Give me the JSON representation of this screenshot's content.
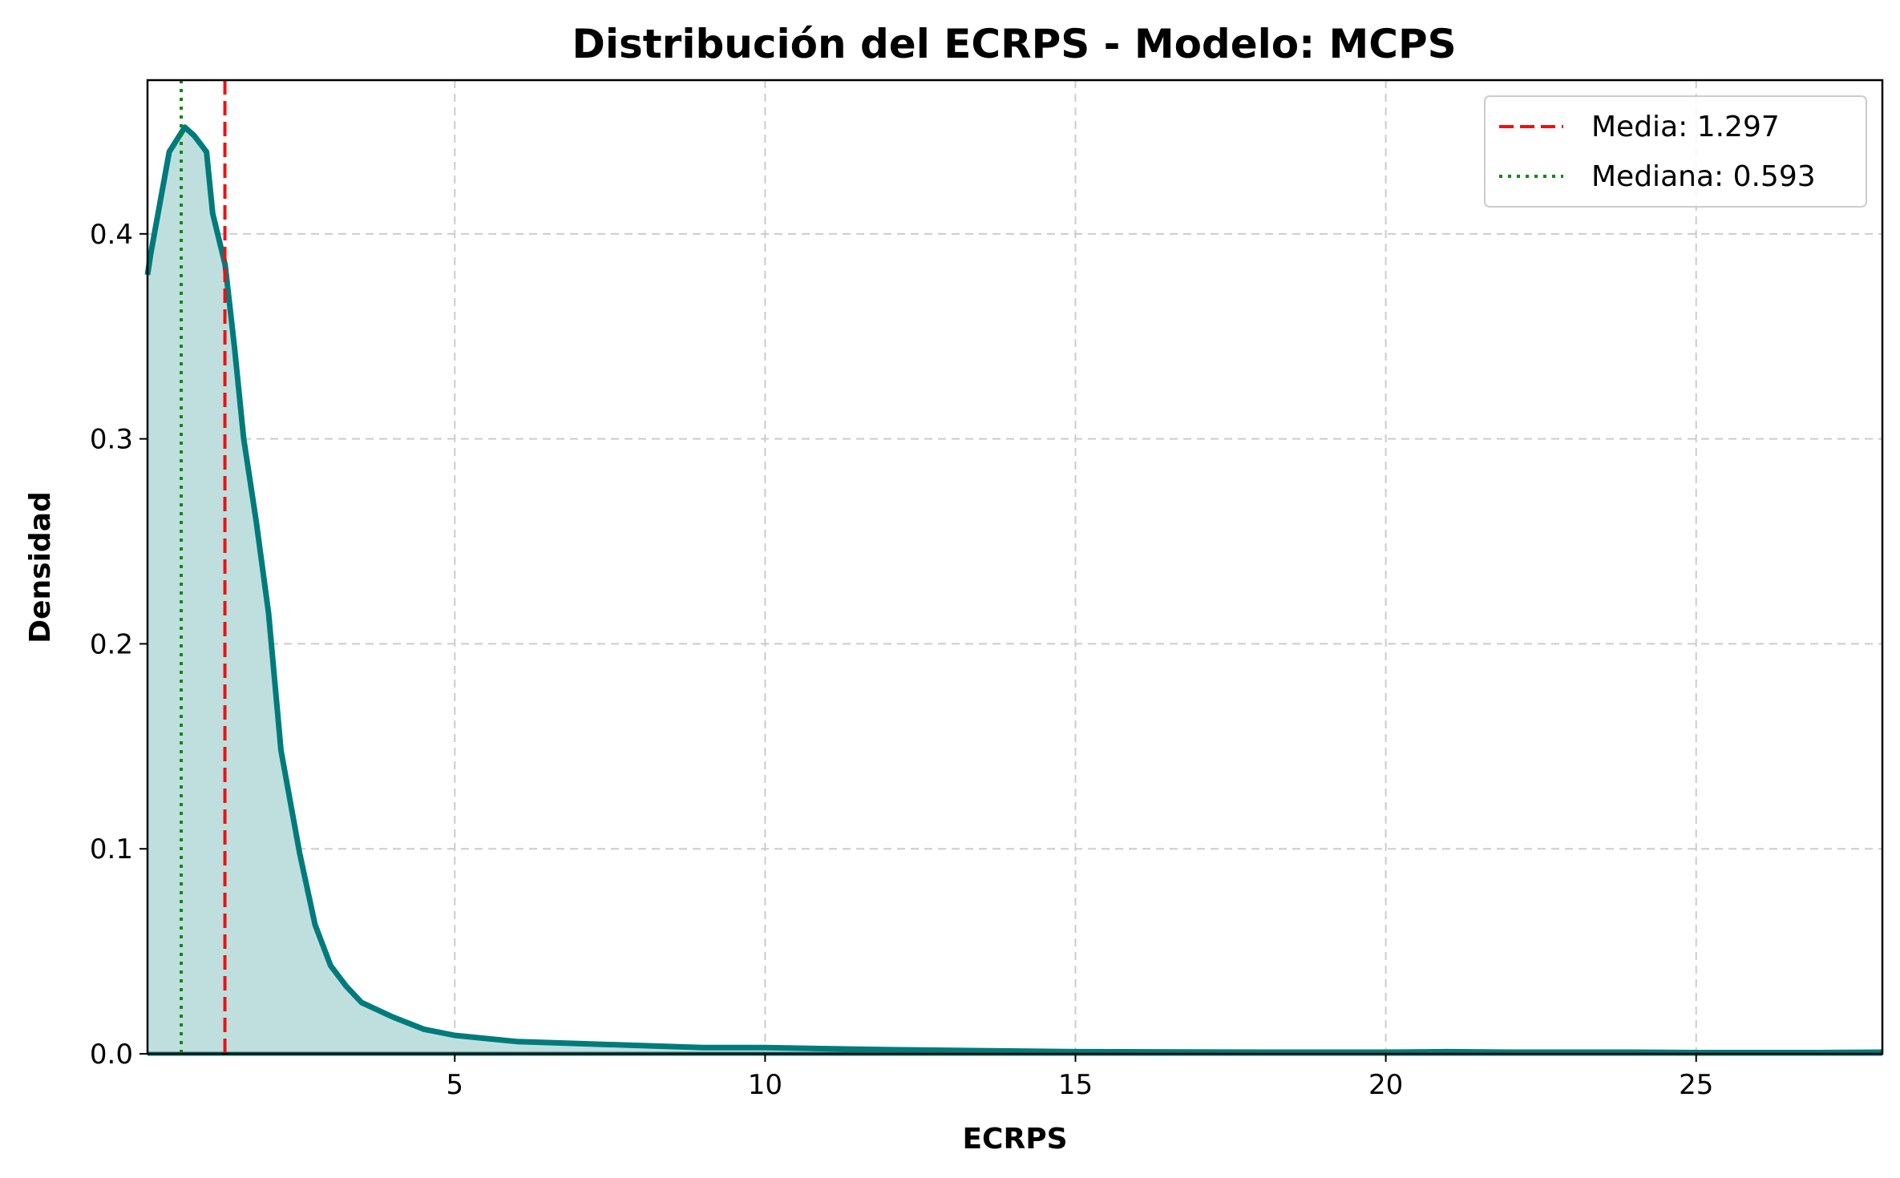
{
  "chart_data": {
    "type": "area",
    "title": "Distribución del ECRPS - Modelo: MCPS",
    "xlabel": "ECRPS",
    "ylabel": "Densidad",
    "xlim": [
      0.05,
      28.0
    ],
    "ylim": [
      0.0,
      0.475
    ],
    "xticks": [
      5,
      10,
      15,
      20,
      25
    ],
    "yticks": [
      0.0,
      0.1,
      0.2,
      0.3,
      0.4
    ],
    "grid": true,
    "legend_position": "top-right",
    "colors": {
      "density": "#007b7b",
      "fill": "#bfdfdf",
      "mean": "#ee1111",
      "median": "#118811"
    },
    "series": [
      {
        "x": [
          0.05,
          0.1,
          0.4,
          0.65,
          0.8,
          1.0,
          1.1,
          1.3,
          1.45,
          1.6,
          1.8,
          2.0,
          2.2,
          2.5,
          2.75,
          3.0,
          3.25,
          3.5,
          4.0,
          4.5,
          5.0,
          6.0,
          7.0,
          8.0,
          9.0,
          10.0,
          12.0,
          15.0,
          18.0,
          20.0,
          21.0,
          22.0,
          23.0,
          24.0,
          25.0,
          26.0,
          27.0,
          28.0
        ],
        "y": [
          0.38,
          0.39,
          0.44,
          0.452,
          0.448,
          0.44,
          0.41,
          0.385,
          0.345,
          0.3,
          0.26,
          0.215,
          0.148,
          0.098,
          0.063,
          0.043,
          0.033,
          0.025,
          0.018,
          0.012,
          0.009,
          0.006,
          0.005,
          0.004,
          0.003,
          0.003,
          0.002,
          0.001,
          0.0008,
          0.0008,
          0.001,
          0.0008,
          0.0008,
          0.0008,
          0.0006,
          0.0006,
          0.0006,
          0.0008
        ]
      }
    ],
    "mean": {
      "label": "Media: 1.297",
      "value": 1.297
    },
    "median": {
      "label": "Mediana: 0.593",
      "value": 0.593
    }
  }
}
